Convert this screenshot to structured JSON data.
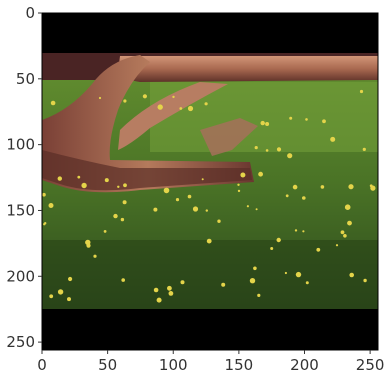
{
  "figure": {
    "kind": "image-plot (matplotlib imshow)",
    "image_subject": "fallen log on grass with small yellow flowers",
    "background_color": "#ffffff",
    "frame_color": "#000000",
    "image_colors": {
      "letterbox": "#000000",
      "sky_strip": "#5a2a2a",
      "log_light": "#c98a6c",
      "log_dark": "#6e3b34",
      "grass_bright": "#7aa23c",
      "grass_mid": "#4f7a2a",
      "grass_dark": "#2d4a1c",
      "flower": "#e6d64a"
    }
  },
  "chart_data": {
    "type": "heatmap",
    "title": "",
    "xlabel": "",
    "ylabel": "",
    "xlim": [
      0,
      256
    ],
    "ylim": [
      256,
      0
    ],
    "y_inverted": true,
    "grid": false,
    "x_ticks": [
      0,
      50,
      100,
      150,
      200,
      250
    ],
    "y_ticks": [
      0,
      50,
      100,
      150,
      200,
      250
    ],
    "x_tick_labels": [
      "0",
      "50",
      "100",
      "150",
      "200",
      "250"
    ],
    "y_tick_labels": [
      "0",
      "50",
      "100",
      "150",
      "200",
      "250"
    ],
    "letterbox_rows": {
      "top": [
        0,
        30
      ],
      "bottom": [
        224,
        256
      ]
    }
  }
}
